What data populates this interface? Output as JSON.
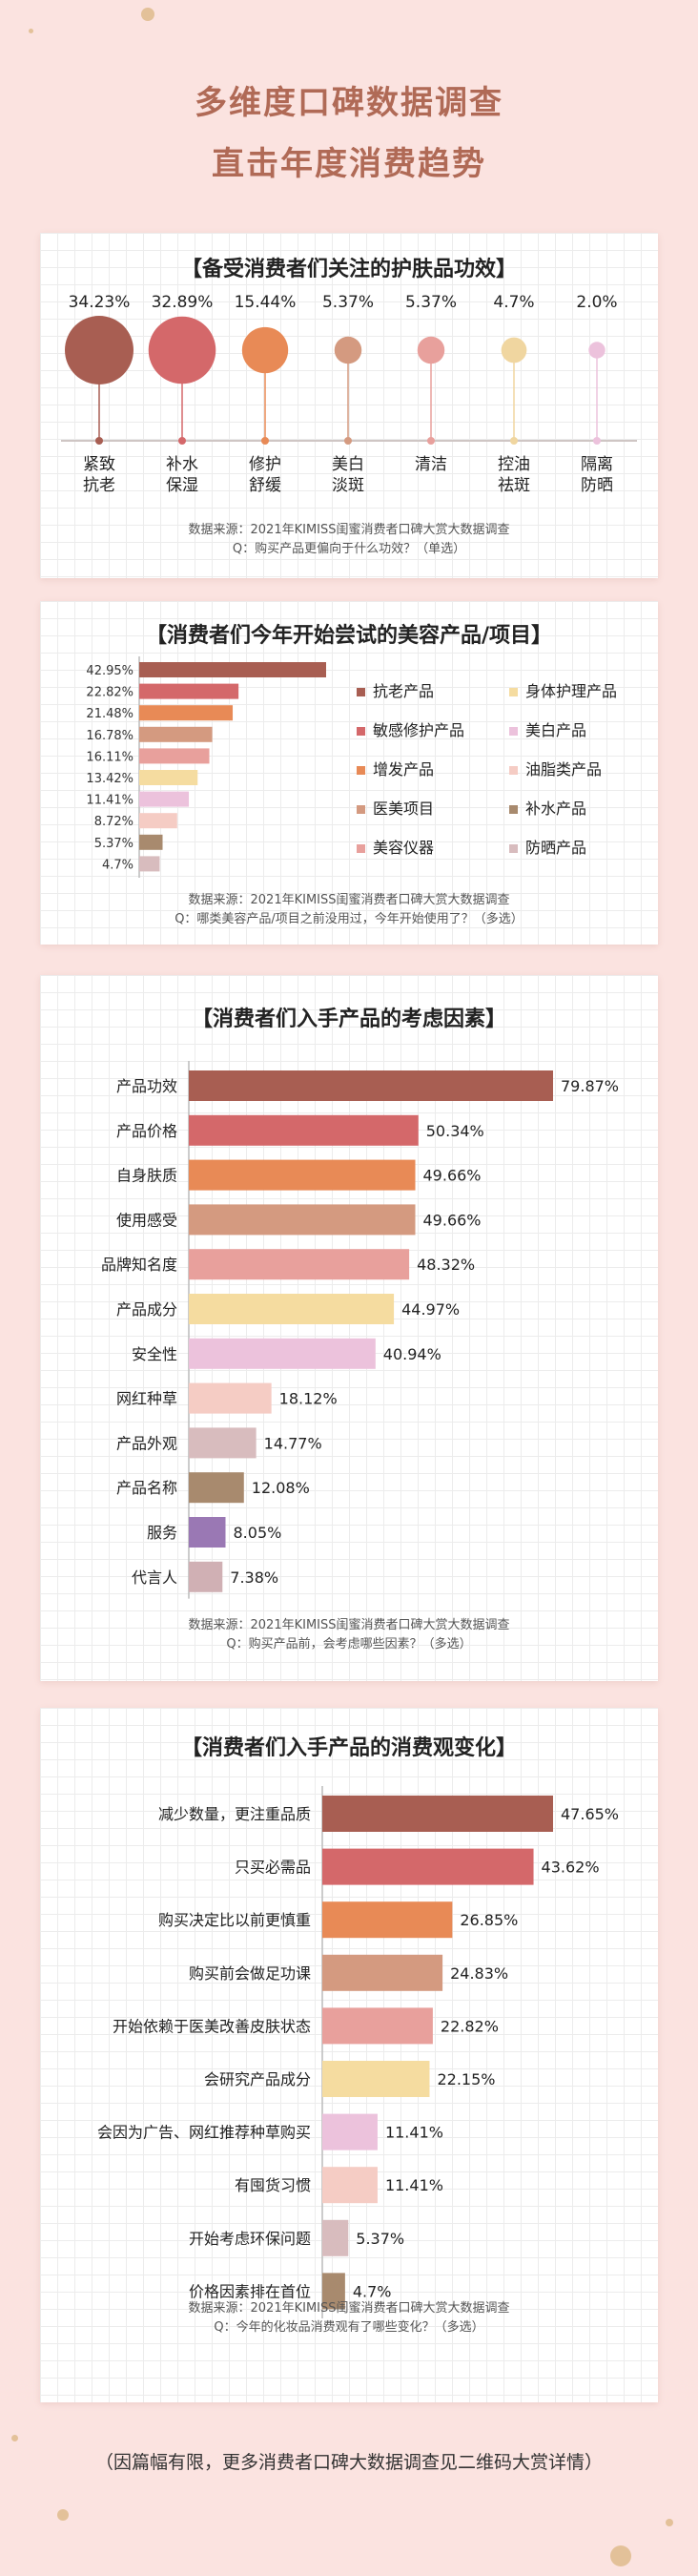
{
  "header": {
    "line1": "多维度口碑数据调查",
    "line2": "直击年度消费趋势"
  },
  "section1": {
    "title": "【备受消费者们关注的护肤品功效】",
    "source": "数据来源：2021年KIMISS闺蜜消费者口碑大赏大数据调查",
    "question": "Q：购买产品更偏向于什么功效？（单选）",
    "chart_data": {
      "type": "bubble",
      "categories": [
        "紧致\n抗老",
        "补水\n保湿",
        "修护\n舒缓",
        "美白\n淡斑",
        "清洁",
        "控油\n祛斑",
        "隔离\n防晒"
      ],
      "value_labels": [
        "34.23%",
        "32.89%",
        "15.44%",
        "5.37%",
        "5.37%",
        "4.7%",
        "2.0%"
      ],
      "values": [
        34.23,
        32.89,
        15.44,
        5.37,
        5.37,
        4.7,
        2.0
      ],
      "colors": [
        "#a85e52",
        "#d4686a",
        "#e88a56",
        "#d49a80",
        "#e8a09c",
        "#f0d6a0",
        "#ecc2dc"
      ]
    }
  },
  "section2": {
    "title": "【消费者们今年开始尝试的美容产品/项目】",
    "source": "数据来源：2021年KIMISS闺蜜消费者口碑大赏大数据调查",
    "question": "Q：哪类美容产品/项目之前没用过，今年开始使用了？（多选）",
    "chart_data": {
      "type": "bar",
      "orientation": "horizontal",
      "value_labels": [
        "42.95%",
        "22.82%",
        "21.48%",
        "16.78%",
        "16.11%",
        "13.42%",
        "11.41%",
        "8.72%",
        "5.37%",
        "4.7%"
      ],
      "values": [
        42.95,
        22.82,
        21.48,
        16.78,
        16.11,
        13.42,
        11.41,
        8.72,
        5.37,
        4.7
      ],
      "colors": [
        "#a85e52",
        "#d4686a",
        "#e88a56",
        "#d49a80",
        "#e8a09c",
        "#f5dca0",
        "#ecc2dc",
        "#f5ccc4",
        "#a88a6e",
        "#d8bcbe"
      ],
      "legend": [
        "抗老产品",
        "敏感修护产品",
        "增发产品",
        "医美项目",
        "美容仪器",
        "身体护理产品",
        "美白产品",
        "油脂类产品",
        "补水产品",
        "防晒产品"
      ],
      "legend_colors": [
        "#a85e52",
        "#d4686a",
        "#e88a56",
        "#d49a80",
        "#e8a09c",
        "#f5dca0",
        "#ecc2dc",
        "#f5ccc4",
        "#a88a6e",
        "#d8bcbe"
      ]
    }
  },
  "section3": {
    "title": "【消费者们入手产品的考虑因素】",
    "source": "数据来源：2021年KIMISS闺蜜消费者口碑大赏大数据调查",
    "question": "Q：购买产品前，会考虑哪些因素？（多选）",
    "chart_data": {
      "type": "bar",
      "orientation": "horizontal",
      "categories": [
        "产品功效",
        "产品价格",
        "自身肤质",
        "使用感受",
        "品牌知名度",
        "产品成分",
        "安全性",
        "网红种草",
        "产品外观",
        "产品名称",
        "服务",
        "代言人"
      ],
      "value_labels": [
        "79.87%",
        "50.34%",
        "49.66%",
        "49.66%",
        "48.32%",
        "44.97%",
        "40.94%",
        "18.12%",
        "14.77%",
        "12.08%",
        "8.05%",
        "7.38%"
      ],
      "values": [
        79.87,
        50.34,
        49.66,
        49.66,
        48.32,
        44.97,
        40.94,
        18.12,
        14.77,
        12.08,
        8.05,
        7.38
      ],
      "colors": [
        "#a85e52",
        "#d4686a",
        "#e88a56",
        "#d49a80",
        "#e8a09c",
        "#f5dca0",
        "#ecc2dc",
        "#f5ccc4",
        "#d8bcbe",
        "#a88a6e",
        "#9a78b4",
        "#d0b0b4"
      ]
    }
  },
  "section4": {
    "title": "【消费者们入手产品的消费观变化】",
    "source": "数据来源：2021年KIMISS闺蜜消费者口碑大赏大数据调查",
    "question": "Q：今年的化妆品消费观有了哪些变化？（多选）",
    "chart_data": {
      "type": "bar",
      "orientation": "horizontal",
      "categories": [
        "减少数量，更注重品质",
        "只买必需品",
        "购买决定比以前更慎重",
        "购买前会做足功课",
        "开始依赖于医美改善皮肤状态",
        "会研究产品成分",
        "会因为广告、网红推荐种草购买",
        "有囤货习惯",
        "开始考虑环保问题",
        "价格因素排在首位"
      ],
      "value_labels": [
        "47.65%",
        "43.62%",
        "26.85%",
        "24.83%",
        "22.82%",
        "22.15%",
        "11.41%",
        "11.41%",
        "5.37%",
        "4.7%"
      ],
      "values": [
        47.65,
        43.62,
        26.85,
        24.83,
        22.82,
        22.15,
        11.41,
        11.41,
        5.37,
        4.7
      ],
      "colors": [
        "#a85e52",
        "#d4686a",
        "#e88a56",
        "#d49a80",
        "#e8a09c",
        "#f5dca0",
        "#ecc2dc",
        "#f5ccc4",
        "#d8bcbe",
        "#a88a6e"
      ]
    }
  },
  "footer": {
    "note": "（因篇幅有限，更多消费者口碑大数据调查见二维码大赏详情）"
  }
}
